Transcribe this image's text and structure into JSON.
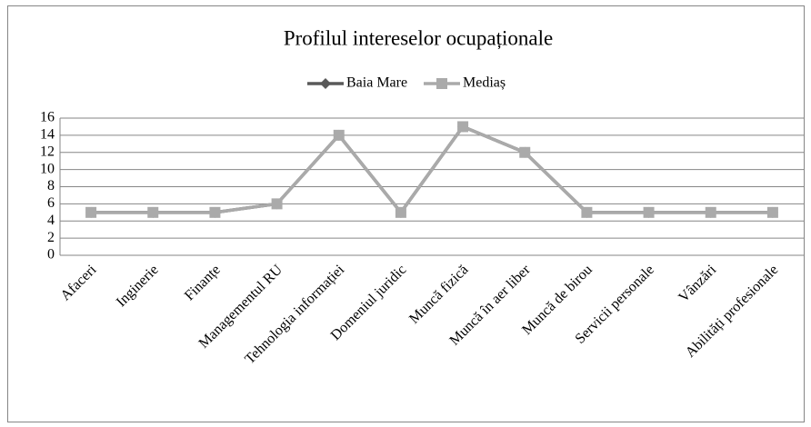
{
  "chart_data": {
    "type": "line",
    "title": "Profilul intereselor ocupaționale",
    "categories": [
      "Afaceri",
      "Inginerie",
      "Finanțe",
      "Managementul RU",
      "Tehnologia informației",
      "Domeniul juridic",
      "Muncă fizică",
      "Muncă în aer liber",
      "Muncă de birou",
      "Servicii personale",
      "Vânzări",
      "Abilități profesionale"
    ],
    "series": [
      {
        "name": "Baia Mare",
        "color": "#595959",
        "marker": "diamond",
        "values": [
          5,
          5,
          5,
          6,
          14,
          5,
          15,
          12,
          5,
          5,
          5,
          5
        ]
      },
      {
        "name": "Mediaș",
        "color": "#aaaaaa",
        "marker": "square",
        "values": [
          5,
          5,
          5,
          6,
          14,
          5,
          15,
          12,
          5,
          5,
          5,
          5
        ]
      }
    ],
    "ylim": [
      0,
      16
    ],
    "yticks": [
      0,
      2,
      4,
      6,
      8,
      10,
      12,
      14,
      16
    ],
    "grid": true,
    "legend": "top"
  }
}
